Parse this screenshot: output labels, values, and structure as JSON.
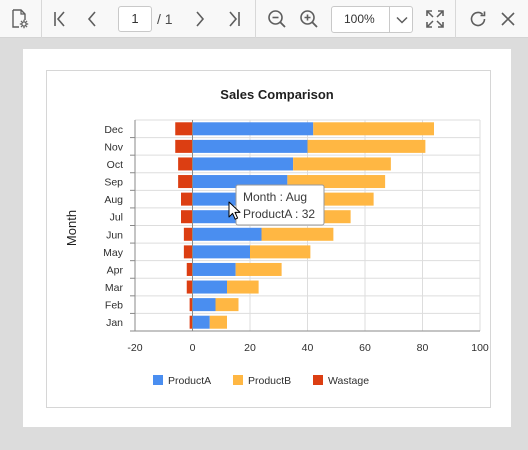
{
  "toolbar": {
    "page_current": "1",
    "page_total": "/ 1",
    "zoom_value": "100%"
  },
  "chart_data": {
    "type": "bar",
    "orientation": "horizontal",
    "stacked": true,
    "title": "Sales Comparison",
    "ylabel": "Month",
    "xlabel": "",
    "categories": [
      "Jan",
      "Feb",
      "Mar",
      "Apr",
      "May",
      "Jun",
      "Jul",
      "Aug",
      "Sep",
      "Oct",
      "Nov",
      "Dec"
    ],
    "series": [
      {
        "name": "ProductA",
        "color": "#4a8ef0",
        "values": [
          6,
          8,
          12,
          15,
          20,
          24,
          28,
          32,
          33,
          35,
          40,
          42
        ]
      },
      {
        "name": "ProductB",
        "color": "#ffb743",
        "values": [
          6,
          8,
          11,
          16,
          21,
          25,
          27,
          31,
          34,
          34,
          41,
          42
        ]
      },
      {
        "name": "Wastage",
        "color": "#dc3e12",
        "values": [
          -1,
          -1,
          -2,
          -2,
          -3,
          -3,
          -4,
          -4,
          -5,
          -5,
          -6,
          -6
        ]
      }
    ],
    "xlim": [
      -20,
      100
    ],
    "xticks": [
      "-20",
      "0",
      "20",
      "40",
      "60",
      "80",
      "100"
    ],
    "legend_position": "bottom",
    "grid": true
  },
  "tooltip": {
    "line1": "Month : Aug",
    "line2": "ProductA : 32"
  }
}
